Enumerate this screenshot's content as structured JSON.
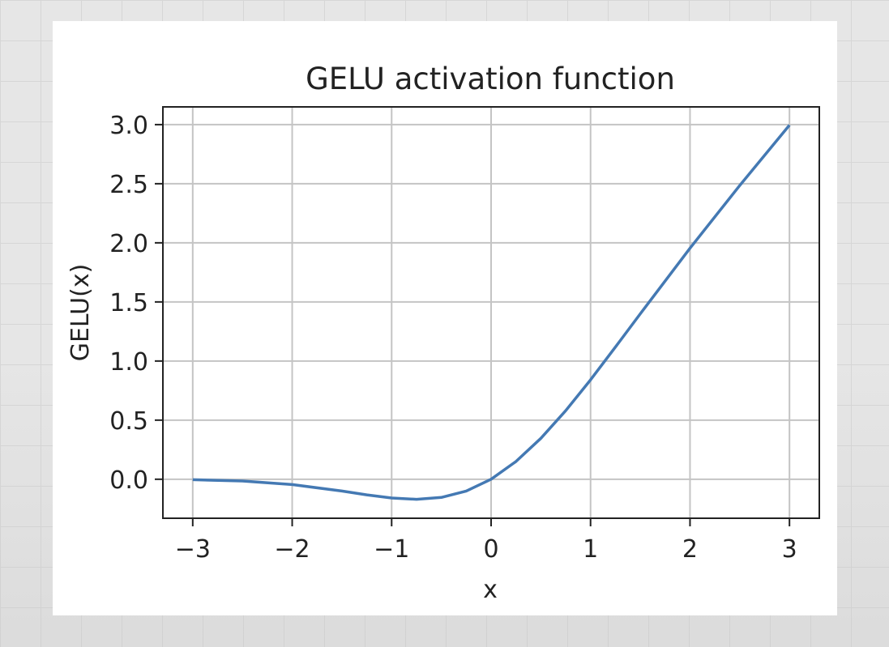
{
  "chart_data": {
    "type": "line",
    "title": "GELU activation function",
    "xlabel": "x",
    "ylabel": "GELU(x)",
    "xlim": [
      -3.3,
      3.3
    ],
    "ylim": [
      -0.33,
      3.15
    ],
    "xticks": [
      -3,
      -2,
      -1,
      0,
      1,
      2,
      3
    ],
    "xtick_labels": [
      "−3",
      "−2",
      "−1",
      "0",
      "1",
      "2",
      "3"
    ],
    "yticks": [
      0.0,
      0.5,
      1.0,
      1.5,
      2.0,
      2.5,
      3.0
    ],
    "ytick_labels": [
      "0.0",
      "0.5",
      "1.0",
      "1.5",
      "2.0",
      "2.5",
      "3.0"
    ],
    "grid": true,
    "series": [
      {
        "color": "#4479b3",
        "x": [
          -3.0,
          -2.5,
          -2.0,
          -1.5,
          -1.25,
          -1.0,
          -0.75,
          -0.5,
          -0.25,
          0.0,
          0.25,
          0.5,
          0.75,
          1.0,
          1.25,
          1.5,
          2.0,
          2.5,
          3.0
        ],
        "y": [
          -0.004,
          -0.015,
          -0.045,
          -0.1,
          -0.132,
          -0.159,
          -0.17,
          -0.154,
          -0.1,
          0.0,
          0.15,
          0.346,
          0.58,
          0.841,
          1.118,
          1.4,
          1.955,
          2.485,
          2.996
        ]
      }
    ]
  }
}
